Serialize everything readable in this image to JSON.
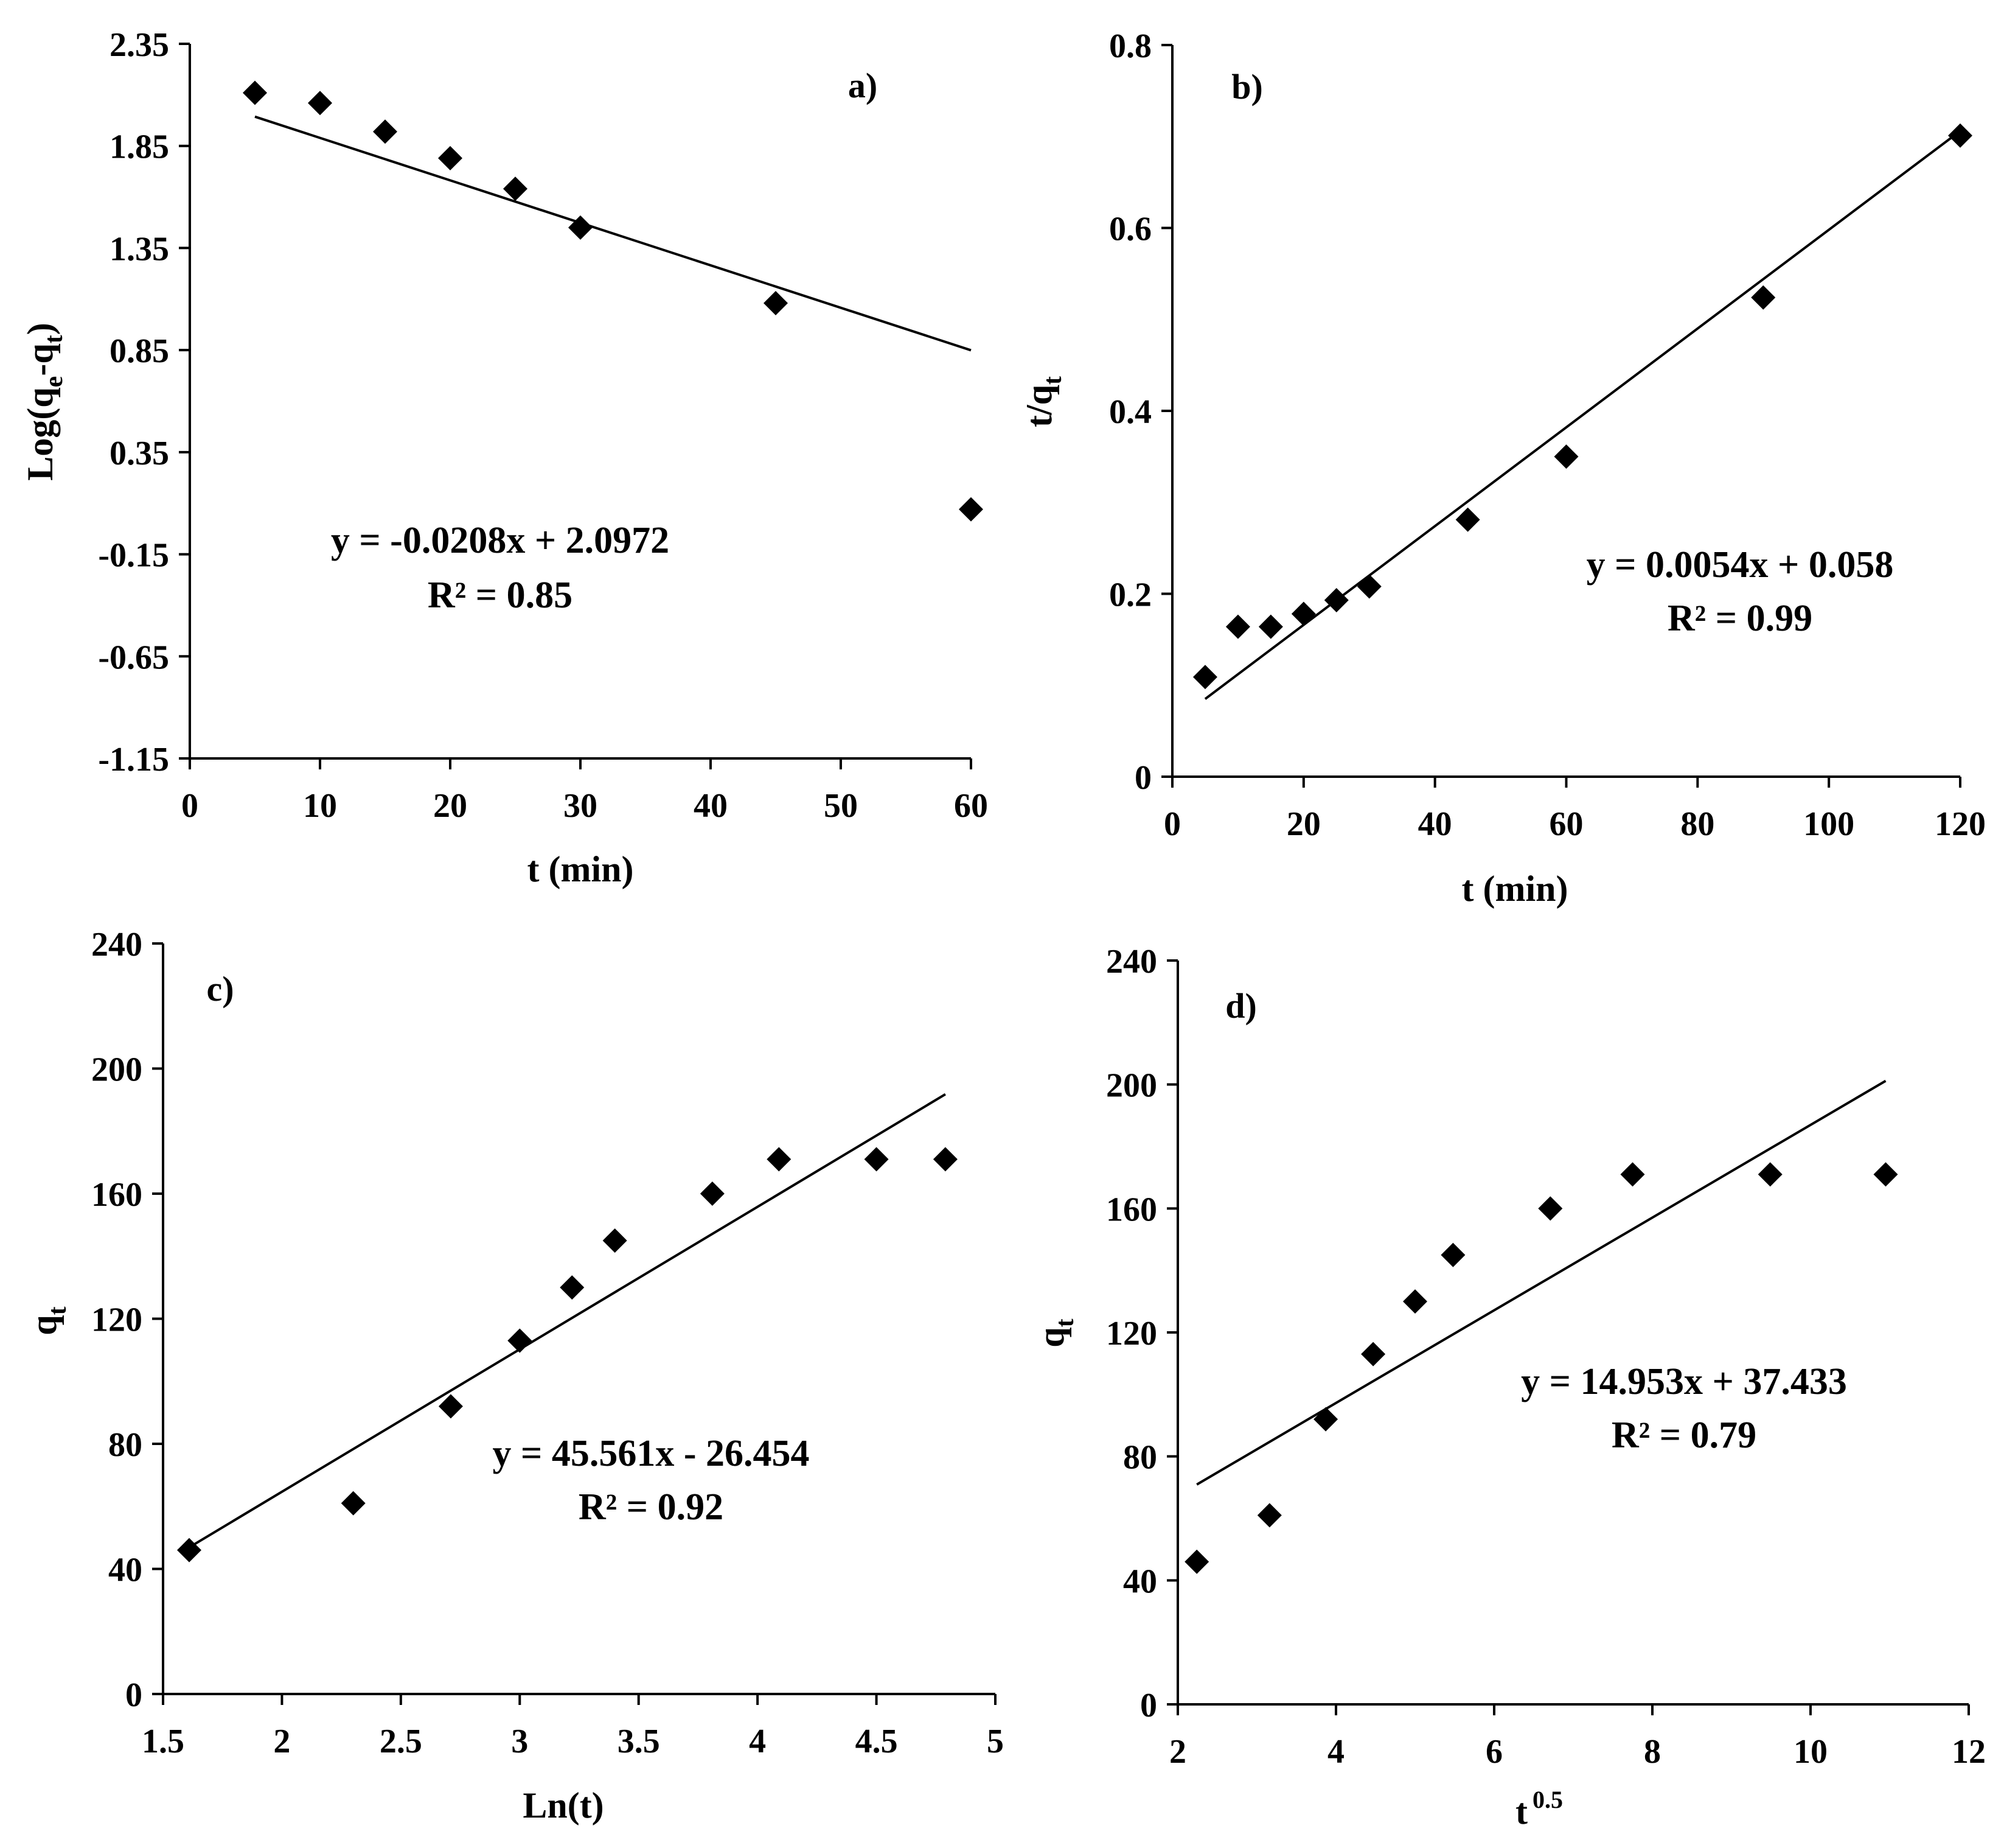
{
  "chart_data": [
    {
      "id": "a",
      "type": "scatter",
      "panel_label": "a)",
      "xlabel": "t (min)",
      "ylabel": {
        "base": "Log(q",
        "sub1": "e",
        "mid": "-q",
        "sub2": "t",
        "end": ")"
      },
      "xlim": [
        0,
        60
      ],
      "ylim": [
        -1.15,
        2.35
      ],
      "xticks": [
        0,
        10,
        20,
        30,
        40,
        50,
        60
      ],
      "yticks": [
        -1.15,
        -0.65,
        -0.15,
        0.35,
        0.85,
        1.35,
        1.85,
        2.35
      ],
      "xtick_labels": [
        "0",
        "10",
        "20",
        "30",
        "40",
        "50",
        "60"
      ],
      "ytick_labels": [
        "-1.15",
        "-0.65",
        "-0.15",
        "0.35",
        "0.85",
        "1.35",
        "1.85",
        "2.35"
      ],
      "x": [
        5,
        10,
        15,
        20,
        25,
        30,
        45,
        60
      ],
      "y": [
        2.11,
        2.06,
        1.92,
        1.79,
        1.64,
        1.45,
        1.08,
        0.07
      ],
      "fit": {
        "slope": -0.0208,
        "intercept": 2.0972,
        "x_range": [
          5,
          60
        ]
      },
      "equation": "y = -0.0208x + 2.0972",
      "r2": "R² = 0.85"
    },
    {
      "id": "b",
      "type": "scatter",
      "panel_label": "b)",
      "xlabel": "t (min)",
      "ylabel": {
        "base": "t/q",
        "sub": "t"
      },
      "xlim": [
        0,
        120
      ],
      "ylim": [
        0,
        0.8
      ],
      "xticks": [
        0,
        20,
        40,
        60,
        80,
        100,
        120
      ],
      "yticks": [
        0,
        0.2,
        0.4,
        0.6,
        0.8
      ],
      "xtick_labels": [
        "0",
        "20",
        "40",
        "60",
        "80",
        "100",
        "120"
      ],
      "ytick_labels": [
        "0",
        "0.2",
        "0.4",
        "0.6",
        "0.8"
      ],
      "x": [
        5,
        10,
        15,
        20,
        25,
        30,
        45,
        60,
        90,
        120
      ],
      "y": [
        0.109,
        0.164,
        0.164,
        0.178,
        0.193,
        0.208,
        0.281,
        0.35,
        0.524,
        0.701
      ],
      "fit": {
        "slope": 0.0054,
        "intercept": 0.058,
        "x_range": [
          5,
          120
        ]
      },
      "equation": "y = 0.0054x + 0.058",
      "r2": "R² = 0.99"
    },
    {
      "id": "c",
      "type": "scatter",
      "panel_label": "c)",
      "xlabel": "Ln(t)",
      "ylabel": {
        "base": "q",
        "sub": "t"
      },
      "xlim": [
        1.5,
        5
      ],
      "ylim": [
        0,
        240
      ],
      "xticks": [
        1.5,
        2,
        2.5,
        3,
        3.5,
        4,
        4.5,
        5
      ],
      "yticks": [
        0,
        40,
        80,
        120,
        160,
        200,
        240
      ],
      "xtick_labels": [
        "1.5",
        "2",
        "2.5",
        "3",
        "3.5",
        "4",
        "4.5",
        "5"
      ],
      "ytick_labels": [
        "0",
        "40",
        "80",
        "120",
        "160",
        "200",
        "240"
      ],
      "x": [
        1.61,
        2.3,
        2.71,
        3.0,
        3.22,
        3.4,
        3.81,
        4.09,
        4.5,
        4.79
      ],
      "y": [
        46,
        61,
        92,
        113,
        130,
        145,
        160,
        171,
        171,
        171
      ],
      "fit": {
        "slope": 45.561,
        "intercept": -26.454,
        "x_range": [
          1.61,
          4.79
        ]
      },
      "equation": "y = 45.561x - 26.454",
      "r2": "R² = 0.92"
    },
    {
      "id": "d",
      "type": "scatter",
      "panel_label": "d)",
      "xlabel": "t",
      "xlabel_sup": "0.5",
      "ylabel": {
        "base": "q",
        "sub": "t"
      },
      "xlim": [
        2,
        12
      ],
      "ylim": [
        0,
        240
      ],
      "xticks": [
        2,
        4,
        6,
        8,
        10,
        12
      ],
      "yticks": [
        0,
        40,
        80,
        120,
        160,
        200,
        240
      ],
      "xtick_labels": [
        "2",
        "4",
        "6",
        "8",
        "10",
        "12"
      ],
      "ytick_labels": [
        "0",
        "40",
        "80",
        "120",
        "160",
        "200",
        "240"
      ],
      "x": [
        2.24,
        3.16,
        3.87,
        4.47,
        5.0,
        5.48,
        6.71,
        7.75,
        9.49,
        10.95
      ],
      "y": [
        46,
        61,
        92,
        113,
        130,
        145,
        160,
        171,
        171,
        171
      ],
      "fit": {
        "slope": 14.953,
        "intercept": 37.433,
        "x_range": [
          2.24,
          10.95
        ]
      },
      "equation": "y = 14.953x + 37.433",
      "r2": "R² = 0.79"
    }
  ]
}
